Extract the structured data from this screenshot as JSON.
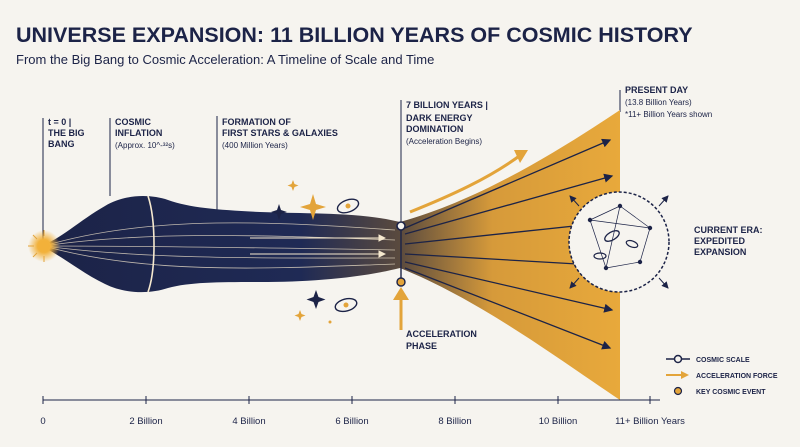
{
  "header": {
    "title": "UNIVERSE EXPANSION: 11 BILLION YEARS OF COSMIC HISTORY",
    "subtitle": "From the Big Bang to Cosmic Acceleration: A Timeline of Scale and Time"
  },
  "events": [
    {
      "lines": [
        "t = 0 |",
        "THE BIG",
        "BANG"
      ],
      "detail": ""
    },
    {
      "lines": [
        "COSMIC",
        "INFLATION"
      ],
      "detail": "(Approx. 10^-³²s)"
    },
    {
      "lines": [
        "FORMATION OF",
        "FIRST STARS & GALAXIES"
      ],
      "detail": "(400 Million Years)"
    },
    {
      "lines": [
        "7 BILLION YEARS |",
        "DARK ENERGY",
        "DOMINATION"
      ],
      "detail": "(Acceleration Begins)"
    },
    {
      "lines": [
        "PRESENT DAY"
      ],
      "detail": "(13.8 Billion Years)",
      "note": "*11+ Billion Years shown"
    }
  ],
  "current_era": [
    "CURRENT ERA:",
    "EXPEDITED",
    "EXPANSION"
  ],
  "acceleration_phase": [
    "ACCELERATION",
    "PHASE"
  ],
  "axis_ticks": [
    "0",
    "2 Billion",
    "4 Billion",
    "6 Billion",
    "8 Billion",
    "10 Billion",
    "11+ Billion Years"
  ],
  "legend": [
    {
      "label": "COSMIC SCALE",
      "symbol": "line-circle"
    },
    {
      "label": "ACCELERATION FORCE",
      "symbol": "arrow"
    },
    {
      "label": "KEY COSMIC EVENT",
      "symbol": "dot"
    }
  ],
  "colors": {
    "navy": "#1c2347",
    "gold": "#e3a43a",
    "background": "#f6f4ef"
  }
}
